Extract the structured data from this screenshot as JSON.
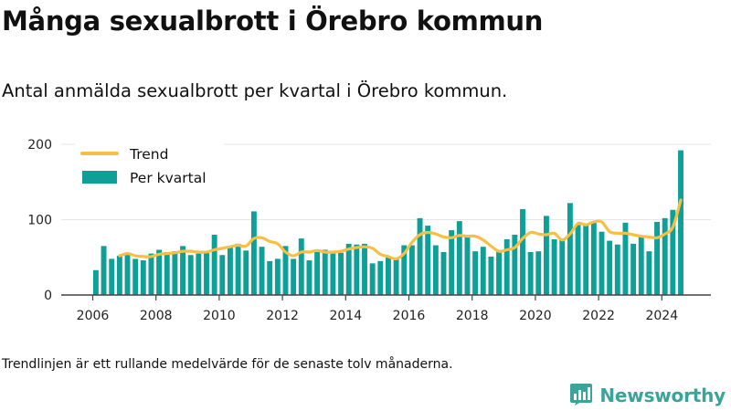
{
  "header": {
    "title": "Många sexualbrott i Örebro kommun",
    "subtitle": "Antal anmälda sexualbrott per kvartal i Örebro kommun."
  },
  "footer": {
    "note": "Trendlinjen är ett rullande medelvärde för de senaste tolv månaderna.",
    "brand": "Newsworthy"
  },
  "colors": {
    "bars": "#0e9f97",
    "trend": "#f7bf45",
    "axis": "#444444",
    "grid": "#e6e6e6",
    "brand": "#3aa39a"
  },
  "icons": {
    "brand_logo": "bar-chart-logo-icon"
  },
  "chart_data": {
    "type": "bar",
    "title": "Många sexualbrott i Örebro kommun",
    "subtitle": "Antal anmälda sexualbrott per kvartal i Örebro kommun.",
    "xlabel": "",
    "ylabel": "",
    "ylim": [
      0,
      200
    ],
    "y_ticks": [
      0,
      100,
      200
    ],
    "y_tick_labels": [
      "0",
      "100",
      "200"
    ],
    "x_ticks": [
      2006,
      2008,
      2010,
      2012,
      2014,
      2016,
      2018,
      2020,
      2022,
      2024
    ],
    "x_tick_labels": [
      "2006",
      "2008",
      "2010",
      "2012",
      "2014",
      "2016",
      "2018",
      "2020",
      "2022",
      "2024"
    ],
    "legend": {
      "position": "top-left",
      "entries": [
        {
          "label": "Trend",
          "type": "line"
        },
        {
          "label": "Per kvartal",
          "type": "bar"
        }
      ]
    },
    "grid": true,
    "categories": [
      "2006 Q1",
      "2006 Q2",
      "2006 Q3",
      "2006 Q4",
      "2007 Q1",
      "2007 Q2",
      "2007 Q3",
      "2007 Q4",
      "2008 Q1",
      "2008 Q2",
      "2008 Q3",
      "2008 Q4",
      "2009 Q1",
      "2009 Q2",
      "2009 Q3",
      "2009 Q4",
      "2010 Q1",
      "2010 Q2",
      "2010 Q3",
      "2010 Q4",
      "2011 Q1",
      "2011 Q2",
      "2011 Q3",
      "2011 Q4",
      "2012 Q1",
      "2012 Q2",
      "2012 Q3",
      "2012 Q4",
      "2013 Q1",
      "2013 Q2",
      "2013 Q3",
      "2013 Q4",
      "2014 Q1",
      "2014 Q2",
      "2014 Q3",
      "2014 Q4",
      "2015 Q1",
      "2015 Q2",
      "2015 Q3",
      "2015 Q4",
      "2016 Q1",
      "2016 Q2",
      "2016 Q3",
      "2016 Q4",
      "2017 Q1",
      "2017 Q2",
      "2017 Q3",
      "2017 Q4",
      "2018 Q1",
      "2018 Q2",
      "2018 Q3",
      "2018 Q4",
      "2019 Q1",
      "2019 Q2",
      "2019 Q3",
      "2019 Q4",
      "2020 Q1",
      "2020 Q2",
      "2020 Q3",
      "2020 Q4",
      "2021 Q1",
      "2021 Q2",
      "2021 Q3",
      "2021 Q4",
      "2022 Q1",
      "2022 Q2",
      "2022 Q3",
      "2022 Q4",
      "2023 Q1",
      "2023 Q2",
      "2023 Q3",
      "2023 Q4",
      "2024 Q1",
      "2024 Q2",
      "2024 Q3"
    ],
    "series": [
      {
        "name": "Per kvartal",
        "type": "bar",
        "values": [
          33,
          65,
          48,
          52,
          56,
          48,
          46,
          55,
          60,
          57,
          58,
          65,
          53,
          55,
          58,
          80,
          53,
          64,
          68,
          59,
          111,
          64,
          45,
          48,
          65,
          48,
          75,
          46,
          57,
          60,
          55,
          56,
          68,
          67,
          68,
          42,
          45,
          50,
          48,
          66,
          66,
          102,
          92,
          66,
          57,
          86,
          98,
          78,
          58,
          64,
          51,
          58,
          74,
          80,
          114,
          57,
          58,
          105,
          74,
          74,
          122,
          93,
          95,
          97,
          84,
          72,
          67,
          96,
          68,
          79,
          58,
          97,
          102,
          113,
          192
        ]
      },
      {
        "name": "Trend",
        "type": "line",
        "values": [
          null,
          null,
          null,
          52,
          55,
          52,
          51,
          51,
          54,
          55,
          56,
          58,
          58,
          57,
          57,
          60,
          62,
          64,
          66,
          65,
          75,
          76,
          71,
          68,
          57,
          52,
          57,
          57,
          59,
          57,
          57,
          58,
          61,
          63,
          64,
          62,
          54,
          51,
          48,
          55,
          70,
          80,
          83,
          81,
          77,
          76,
          79,
          78,
          78,
          73,
          65,
          58,
          60,
          63,
          75,
          83,
          81,
          80,
          82,
          73,
          81,
          95,
          93,
          97,
          97,
          84,
          82,
          82,
          80,
          78,
          77,
          76,
          81,
          90,
          126
        ]
      }
    ]
  }
}
